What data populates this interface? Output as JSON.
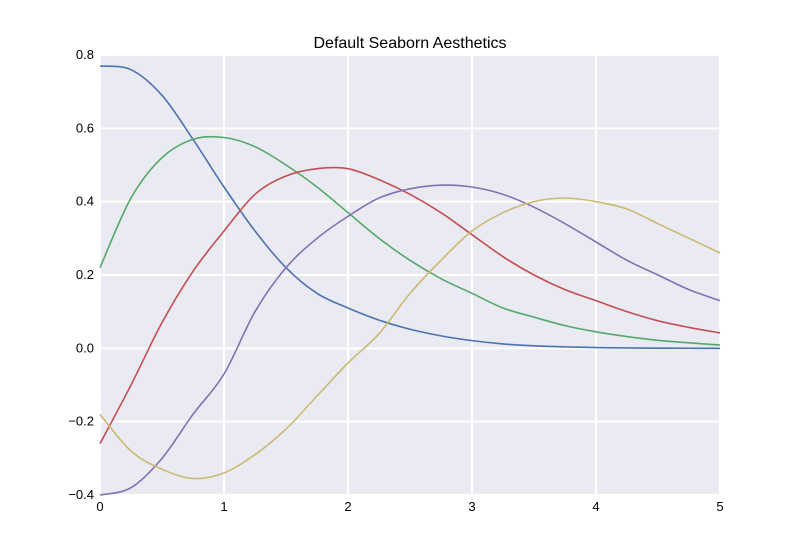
{
  "chart_data": {
    "type": "line",
    "title": "Default Seaborn Aesthetics",
    "xlabel": "",
    "ylabel": "",
    "xlim": [
      0,
      5
    ],
    "ylim": [
      -0.4,
      0.8
    ],
    "grid": true,
    "legend": "none",
    "background_color": "#EAEAF2",
    "grid_color": "#FFFFFF",
    "x_ticks": [
      0,
      1,
      2,
      3,
      4,
      5
    ],
    "y_ticks": [
      -0.4,
      -0.2,
      0.0,
      0.2,
      0.4,
      0.6,
      0.8
    ],
    "x_tick_labels": [
      "0",
      "1",
      "2",
      "3",
      "4",
      "5"
    ],
    "y_tick_labels": [
      "−0.4",
      "−0.2",
      "0.0",
      "0.2",
      "0.4",
      "0.6",
      "0.8"
    ],
    "x": [
      0,
      0.25,
      0.5,
      0.75,
      1,
      1.25,
      1.5,
      1.75,
      2,
      2.25,
      2.5,
      2.75,
      3,
      3.25,
      3.5,
      3.75,
      4,
      4.25,
      4.5,
      4.75,
      5
    ],
    "series": [
      {
        "color": "#4C72B0",
        "values": [
          0.77,
          0.76,
          0.69,
          0.57,
          0.44,
          0.32,
          0.22,
          0.15,
          0.11,
          0.077,
          0.052,
          0.034,
          0.021,
          0.012,
          0.007,
          0.004,
          0.002,
          0.001,
          0.0005,
          0.0002,
          0.0
        ]
      },
      {
        "color": "#55A868",
        "values": [
          0.22,
          0.41,
          0.52,
          0.57,
          0.575,
          0.55,
          0.5,
          0.44,
          0.37,
          0.3,
          0.24,
          0.19,
          0.15,
          0.11,
          0.085,
          0.062,
          0.045,
          0.032,
          0.022,
          0.015,
          0.009
        ]
      },
      {
        "color": "#C44E52",
        "values": [
          -0.26,
          -0.1,
          0.07,
          0.21,
          0.32,
          0.42,
          0.47,
          0.49,
          0.49,
          0.46,
          0.42,
          0.37,
          0.31,
          0.25,
          0.2,
          0.16,
          0.13,
          0.1,
          0.075,
          0.057,
          0.042
        ]
      },
      {
        "color": "#8172B2",
        "values": [
          -0.4,
          -0.38,
          -0.3,
          -0.18,
          -0.07,
          0.1,
          0.22,
          0.3,
          0.36,
          0.41,
          0.435,
          0.445,
          0.44,
          0.42,
          0.385,
          0.34,
          0.29,
          0.24,
          0.2,
          0.16,
          0.13
        ]
      },
      {
        "color": "#CCB974",
        "values": [
          -0.18,
          -0.28,
          -0.33,
          -0.355,
          -0.34,
          -0.29,
          -0.22,
          -0.13,
          -0.04,
          0.04,
          0.15,
          0.24,
          0.32,
          0.37,
          0.4,
          0.41,
          0.4,
          0.38,
          0.34,
          0.3,
          0.26
        ]
      }
    ]
  }
}
